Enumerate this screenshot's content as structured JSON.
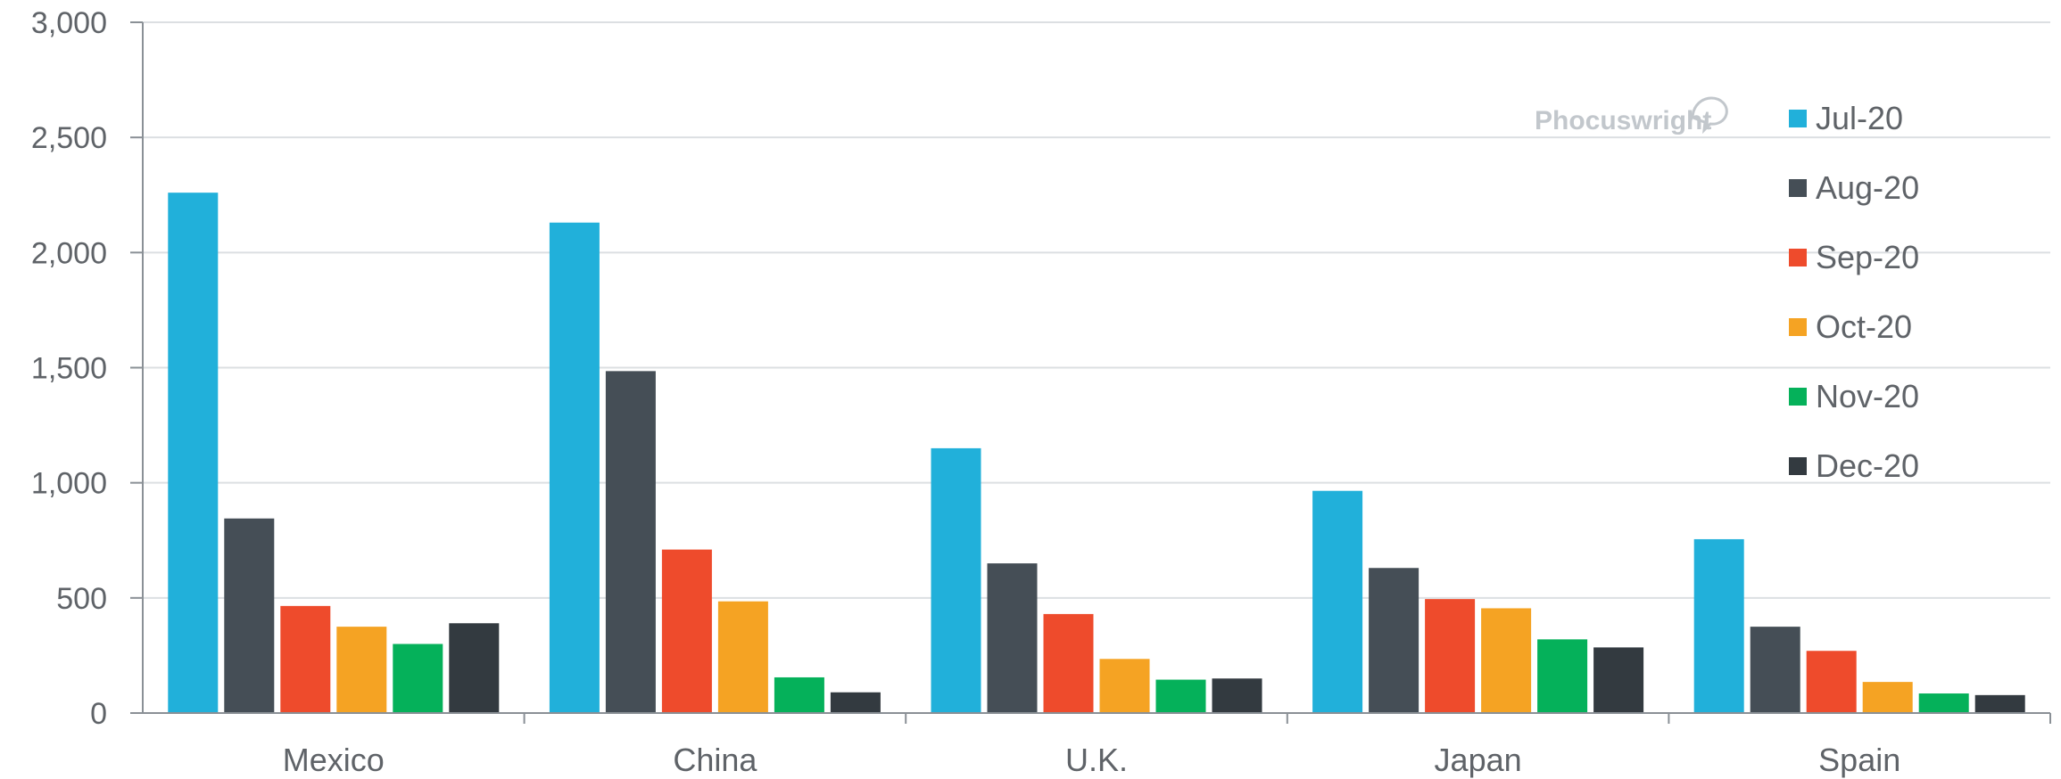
{
  "chart_data": {
    "type": "bar",
    "categories": [
      "Mexico",
      "China",
      "U.K.",
      "Japan",
      "Spain"
    ],
    "series": [
      {
        "name": "Jul-20",
        "values": [
          2260,
          2130,
          1150,
          965,
          755
        ]
      },
      {
        "name": "Aug-20",
        "values": [
          845,
          1485,
          650,
          630,
          375
        ]
      },
      {
        "name": "Sep-20",
        "values": [
          465,
          710,
          430,
          495,
          270
        ]
      },
      {
        "name": "Oct-20",
        "values": [
          375,
          485,
          235,
          455,
          135
        ]
      },
      {
        "name": "Nov-20",
        "values": [
          300,
          155,
          145,
          320,
          85
        ]
      },
      {
        "name": "Dec-20",
        "values": [
          390,
          90,
          150,
          285,
          78
        ]
      }
    ],
    "colors": [
      "#21b0da",
      "#454e56",
      "#ee4b2c",
      "#f5a323",
      "#05b15a",
      "#333a40"
    ],
    "y_ticks": [
      "0",
      "500",
      "1,000",
      "1,500",
      "2,000",
      "2,500",
      "3,000"
    ],
    "ylim": [
      0,
      3000
    ],
    "grid": true,
    "legend_position": "right",
    "title": "",
    "xlabel": "",
    "ylabel": ""
  },
  "watermark": "Phocuswright"
}
